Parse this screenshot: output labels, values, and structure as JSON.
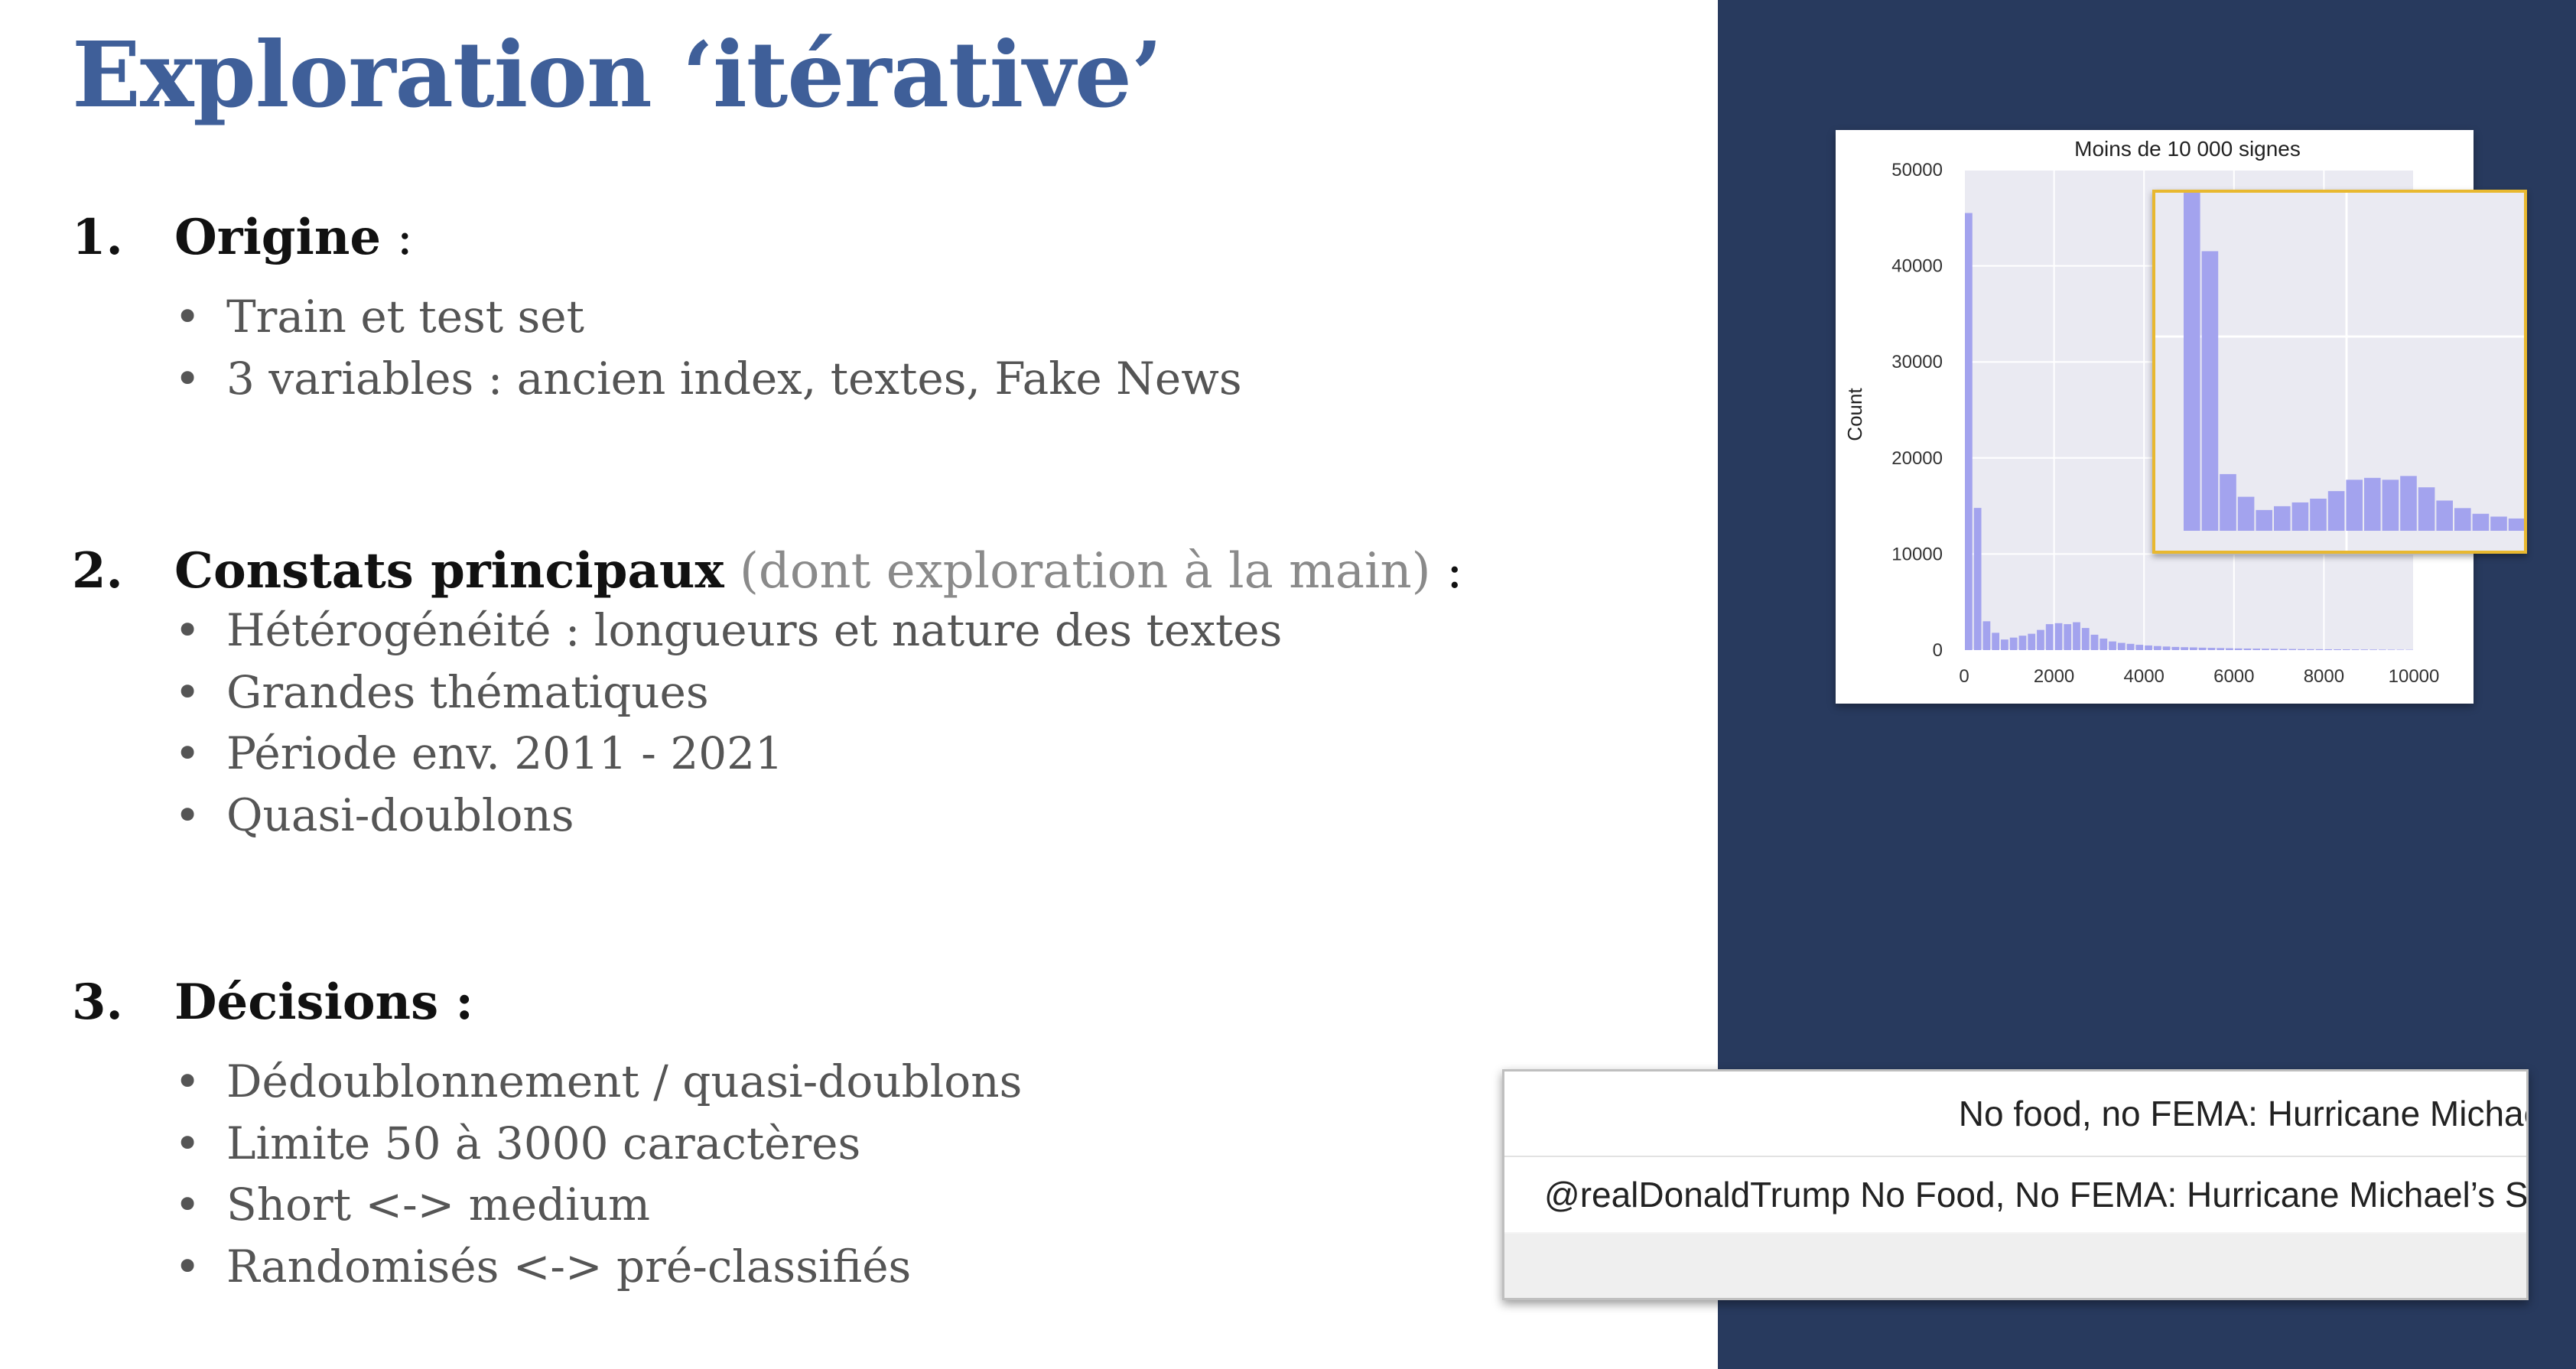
{
  "slide": {
    "title": "Exploration ‘itérative’",
    "sections": [
      {
        "number": "1.",
        "label": "Origine",
        "aside": "",
        "suffix": " :",
        "bullets": [
          "Train et test set",
          "3 variables : ancien index, textes, Fake News"
        ]
      },
      {
        "number": "2.",
        "label": "Constats principaux",
        "aside": " (dont exploration à la main)",
        "suffix": " :",
        "bullets": [
          "Hétérogénéité : longueurs et nature des textes",
          "Grandes thématiques",
          "Période env. 2011 - 2021",
          "Quasi-doublons"
        ]
      },
      {
        "number": "3.",
        "label": "Décisions :",
        "aside": "",
        "suffix": "",
        "bullets": [
          "Dédoublonnement / quasi-doublons",
          "Limite 50 à 3000 caractères",
          "Short <-> medium",
          "Randomisés <-> pré-classifiés"
        ]
      }
    ]
  },
  "colors": {
    "title": "#3f5f99",
    "panel": "#283a5e",
    "bars": "#a3a3ee",
    "plot_bg": "#eaeaf2",
    "inset_border": "#e8b830"
  },
  "chart_data": {
    "type": "bar",
    "title": "Moins de 10 000 signes",
    "xlabel": "",
    "ylabel": "Count",
    "xlim": [
      0,
      10000
    ],
    "ylim": [
      0,
      50000
    ],
    "xticks": [
      "0",
      "2000",
      "4000",
      "6000",
      "8000",
      "10000"
    ],
    "yticks": [
      "0",
      "10000",
      "20000",
      "30000",
      "40000",
      "50000"
    ],
    "grid": true,
    "bin_width": 200,
    "x": [
      0,
      200,
      400,
      600,
      800,
      1000,
      1200,
      1400,
      1600,
      1800,
      2000,
      2200,
      2400,
      2600,
      2800,
      3000,
      3200,
      3400,
      3600,
      3800,
      4000,
      4200,
      4400,
      4600,
      4800,
      5000,
      5200,
      5400,
      5600,
      5800,
      6000,
      6200,
      6400,
      6600,
      6800,
      7000,
      7200,
      7400,
      7600,
      7800,
      8000,
      8200,
      8400,
      8600,
      8800,
      9000,
      9200,
      9400,
      9600,
      9800
    ],
    "values": [
      45500,
      14800,
      3000,
      1800,
      1100,
      1300,
      1500,
      1700,
      2100,
      2700,
      2800,
      2700,
      2900,
      2300,
      1600,
      1200,
      900,
      750,
      650,
      550,
      480,
      420,
      370,
      330,
      300,
      280,
      250,
      230,
      210,
      190,
      170,
      160,
      150,
      140,
      130,
      120,
      110,
      100,
      95,
      90,
      85,
      80,
      75,
      70,
      65,
      60,
      55,
      50,
      45,
      40
    ]
  },
  "inset_zoom": {
    "values": [
      45500,
      14800,
      3000,
      1800,
      1100,
      1300,
      1500,
      1700,
      2100,
      2700,
      2800,
      2700,
      2900,
      2300,
      1600,
      1200,
      900,
      750,
      650,
      550
    ]
  },
  "tweets": [
    "No food, no FEMA: Hurricane Michael’s survivors a",
    "@realDonaldTrump No Food, No FEMA: Hurricane Michael’s S"
  ]
}
